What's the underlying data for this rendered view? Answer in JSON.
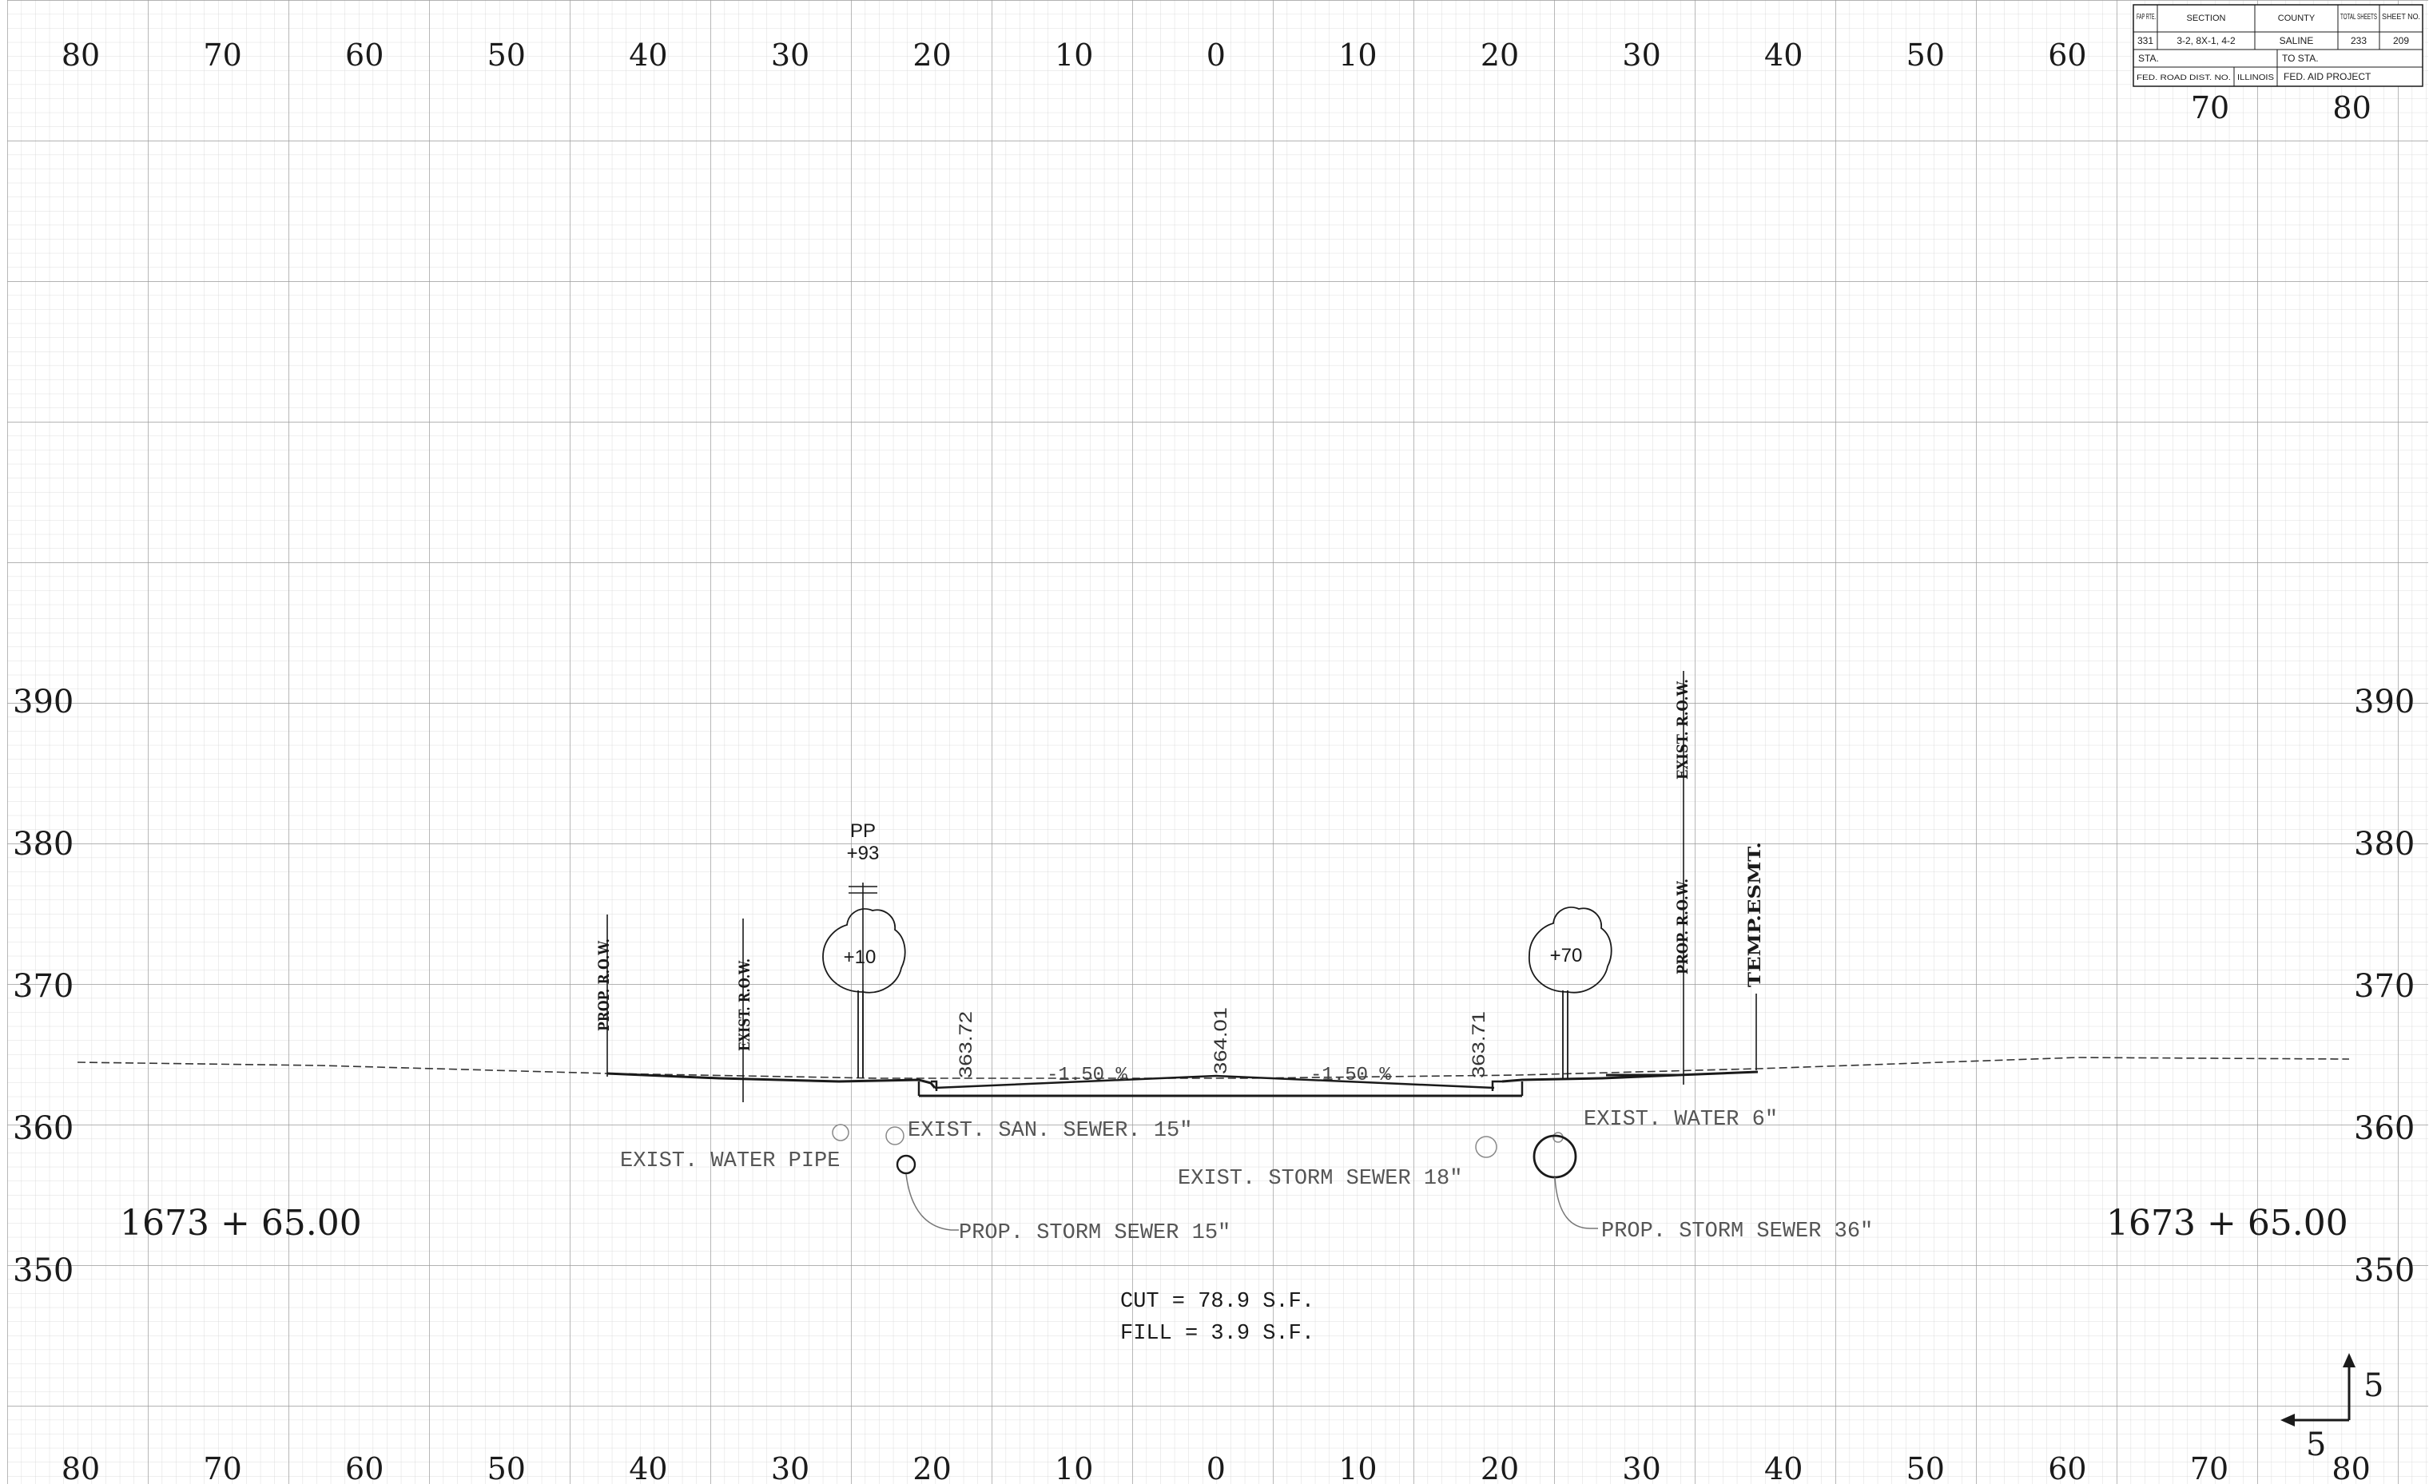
{
  "colors": {
    "ink": "#1a1a1a",
    "utility_text": "#555555",
    "grid_minor": "#c7c7c7",
    "grid_major": "#9a9a9a",
    "paper": "#ffffff"
  },
  "axis": {
    "offset_labels_top": [
      "80",
      "70",
      "60",
      "50",
      "40",
      "30",
      "20",
      "10",
      "0",
      "10",
      "20",
      "30",
      "40",
      "50",
      "60"
    ],
    "offset_labels_top_right": [
      "70",
      "80"
    ],
    "offset_labels_bottom": [
      "80",
      "70",
      "60",
      "50",
      "40",
      "30",
      "20",
      "10",
      "0",
      "10",
      "20",
      "30",
      "40",
      "50",
      "60",
      "70",
      "80"
    ],
    "elevation_labels": [
      "390",
      "380",
      "370",
      "360",
      "350"
    ]
  },
  "title_block": {
    "fap_rte_header": "FAP RTE.",
    "section_header": "SECTION",
    "county_header": "COUNTY",
    "total_sheets_header": "TOTAL SHEETS",
    "sheet_no_header": "SHEET NO.",
    "fap_rte": "331",
    "section": "3-2, 8X-1, 4-2",
    "county": "SALINE",
    "total_sheets": "233",
    "sheet_no": "209",
    "sta_label": "STA.",
    "to_sta_label": "TO STA.",
    "fed_road_dist": "FED. ROAD DIST. NO.",
    "state": "ILLINOIS",
    "fed_aid_project": "FED. AID PROJECT"
  },
  "station": {
    "left": "1673 + 65.00",
    "right": "1673 + 65.00"
  },
  "labels": {
    "prop_row_left": "PROP. R.O.W.",
    "exist_row_left": "EXIST. R.O.W.",
    "pp": "PP",
    "pp_offset": "+93",
    "tree_left": "+10",
    "tree_right": "+70",
    "exist_row_right": "EXIST. R.O.W.",
    "prop_row_right": "PROP. R.O.W.",
    "temp_esmt": "TEMP.ESMT.",
    "elev_left_edge": "363.72",
    "elev_center": "364.01",
    "elev_right_edge": "363.71",
    "slope_left": "-1.50 %",
    "slope_right": "-1.50 %"
  },
  "utilities": {
    "exist_san_sewer": "EXIST. SAN. SEWER. 15\"",
    "exist_water_pipe": "EXIST. WATER PIPE",
    "prop_storm_15": "PROP. STORM SEWER 15\"",
    "exist_storm_18": "EXIST. STORM SEWER 18\"",
    "exist_water_6": "EXIST. WATER 6\"",
    "prop_storm_36": "PROP. STORM SEWER 36\""
  },
  "quantities": {
    "cut": "CUT = 78.9 S.F.",
    "fill": "FILL = 3.9 S.F."
  },
  "scale": {
    "vertical": "5",
    "horizontal": "5"
  }
}
